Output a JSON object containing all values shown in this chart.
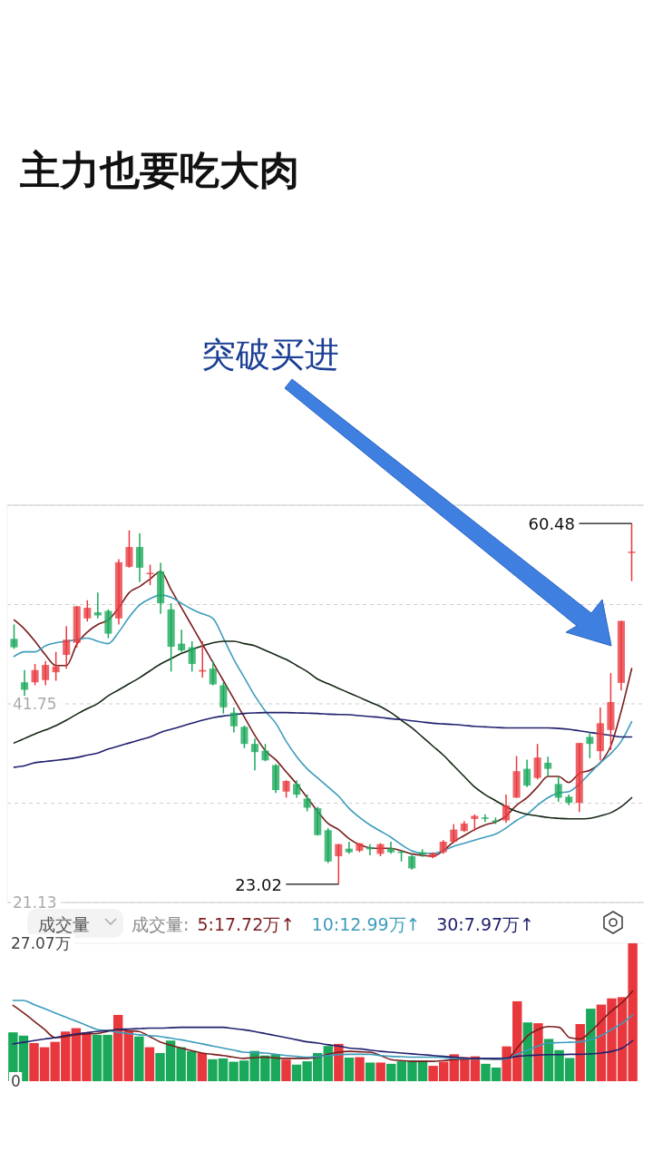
{
  "chart_data": [
    {
      "type": "candlestick",
      "title": "主力也要吃大肉",
      "annotations": [
        "突破买进",
        "60.48",
        "23.02"
      ],
      "categories": [
        null,
        null,
        null,
        null,
        null,
        null,
        null,
        null,
        null,
        null,
        null,
        null,
        null,
        null,
        null,
        null,
        null,
        null,
        null,
        null,
        null,
        null,
        null,
        null,
        null,
        null,
        null,
        null,
        null,
        null,
        null,
        null,
        null,
        null,
        null,
        null,
        null,
        null,
        null,
        null,
        null,
        null,
        null,
        null,
        null,
        null,
        null,
        null,
        null,
        null,
        null,
        null,
        null,
        null,
        null,
        null,
        null,
        null,
        null,
        null
      ],
      "ohlc": [
        [
          48.5,
          49.99,
          47.46,
          47.62
        ],
        [
          43.99,
          45.26,
          42.58,
          43.21
        ],
        [
          43.99,
          45.89,
          43.68,
          45.26
        ],
        [
          44.22,
          46.2,
          43.68,
          45.79
        ],
        [
          45.03,
          47.15,
          44.15,
          45.63
        ],
        [
          46.83,
          49.83,
          45.41,
          48.41
        ],
        [
          48.09,
          51.88,
          47.62,
          51.88
        ],
        [
          50.62,
          52.51,
          50.3,
          51.72
        ],
        [
          51.25,
          53.3,
          50.62,
          50.93
        ],
        [
          51.4,
          51.56,
          48.57,
          49.04
        ],
        [
          50.62,
          56.76,
          49.99,
          56.45
        ],
        [
          55.98,
          59.76,
          55.88,
          58.03
        ],
        [
          58.03,
          59.44,
          54.4,
          55.88
        ],
        [
          55.25,
          56.2,
          54.08,
          55.35
        ],
        [
          55.5,
          56.39,
          51.09,
          52.19
        ],
        [
          51.56,
          52.19,
          45.1,
          47.68
        ],
        [
          48.0,
          49.45,
          47.15,
          47.3
        ],
        [
          47.62,
          48.25,
          45.1,
          45.89
        ],
        [
          45.1,
          48.25,
          44.47,
          45.26
        ],
        [
          45.41,
          46.2,
          43.68,
          43.77
        ],
        [
          43.68,
          43.99,
          40.75,
          41.38
        ],
        [
          40.84,
          41.38,
          38.79,
          39.42
        ],
        [
          39.36,
          39.49,
          37.15,
          37.59
        ],
        [
          37.59,
          38.16,
          34.85,
          36.74
        ],
        [
          36.9,
          37.59,
          35.8,
          35.89
        ],
        [
          35.39,
          35.48,
          32.49,
          32.8
        ],
        [
          32.64,
          33.81,
          32.01,
          33.75
        ],
        [
          33.43,
          33.81,
          32.01,
          32.33
        ],
        [
          31.92,
          32.33,
          30.59,
          30.97
        ],
        [
          30.91,
          31.07,
          28.07,
          28.13
        ],
        [
          28.64,
          28.86,
          25.23,
          25.39
        ],
        [
          25.93,
          27.19,
          23.02,
          27.19
        ],
        [
          26.72,
          27.44,
          26.18,
          26.34
        ],
        [
          26.5,
          27.28,
          26.34,
          27.28
        ],
        [
          26.87,
          27.19,
          26.02,
          26.65
        ],
        [
          26.18,
          27.28,
          25.93,
          27.19
        ],
        [
          26.75,
          27.44,
          26.18,
          26.34
        ],
        [
          26.43,
          26.5,
          25.39,
          26.27
        ],
        [
          25.93,
          26.18,
          24.54,
          24.67
        ],
        [
          26.34,
          26.65,
          25.86,
          26.12
        ],
        [
          25.86,
          26.34,
          25.71,
          26.24
        ],
        [
          26.34,
          27.6,
          26.18,
          27.44
        ],
        [
          27.44,
          29.27,
          27.28,
          28.7
        ],
        [
          28.55,
          29.59,
          28.45,
          29.33
        ],
        [
          29.81,
          30.28,
          28.55,
          30.12
        ],
        [
          29.96,
          30.28,
          29.49,
          29.81
        ],
        [
          29.65,
          29.96,
          29.27,
          29.56
        ],
        [
          29.65,
          32.33,
          29.4,
          31.22
        ],
        [
          32.01,
          36.33,
          32.01,
          34.76
        ],
        [
          35.01,
          35.95,
          33.12,
          33.27
        ],
        [
          34.06,
          37.59,
          33.9,
          36.18
        ],
        [
          35.64,
          36.27,
          34.22,
          35.01
        ],
        [
          33.43,
          34.22,
          31.6,
          32.01
        ],
        [
          32.11,
          32.33,
          31.22,
          31.48
        ],
        [
          31.48,
          37.69,
          30.53,
          37.69
        ],
        [
          38.32,
          38.79,
          36.11,
          37.59
        ],
        [
          36.84,
          41.38,
          35.89,
          39.74
        ],
        [
          39.04,
          44.94,
          36.96,
          41.94
        ],
        [
          43.93,
          50.36,
          43.14,
          50.36
        ],
        [
          57.46,
          60.48,
          54.49,
          57.55
        ]
      ],
      "colors": [
        "#1aa85a",
        "#1aa85a",
        "#e8383d",
        "#e8383d",
        "#e8383d",
        "#e8383d",
        "#e8383d",
        "#e8383d",
        "#1aa85a",
        "#1aa85a",
        "#e8383d",
        "#e8383d",
        "#1aa85a",
        "#e8383d",
        "#1aa85a",
        "#1aa85a",
        "#1aa85a",
        "#1aa85a",
        "#e8383d",
        "#1aa85a",
        "#1aa85a",
        "#1aa85a",
        "#1aa85a",
        "#1aa85a",
        "#1aa85a",
        "#1aa85a",
        "#e8383d",
        "#1aa85a",
        "#1aa85a",
        "#1aa85a",
        "#1aa85a",
        "#e8383d",
        "#1aa85a",
        "#e8383d",
        "#1aa85a",
        "#e8383d",
        "#1aa85a",
        "#1aa85a",
        "#1aa85a",
        "#1aa85a",
        "#e8383d",
        "#e8383d",
        "#e8383d",
        "#e8383d",
        "#e8383d",
        "#1aa85a",
        "#1aa85a",
        "#e8383d",
        "#e8383d",
        "#1aa85a",
        "#e8383d",
        "#1aa85a",
        "#1aa85a",
        "#1aa85a",
        "#e8383d",
        "#1aa85a",
        "#e8383d",
        "#e8383d",
        "#e8383d",
        "#e8383d"
      ],
      "series": [
        {
          "type": "line",
          "color": "#7a1e1e",
          "values": [
            50.46,
            49.51,
            48.25,
            46.83,
            45.73,
            45.73,
            47.94,
            49.2,
            49.99,
            50.46,
            51.72,
            53.3,
            53.93,
            54.71,
            55.5,
            53.61,
            51.72,
            49.83,
            47.94,
            46.04,
            44.15,
            42.26,
            40.37,
            38.48,
            36.9,
            35.95,
            34.69,
            33.43,
            32.01,
            30.59,
            29.33,
            28.7,
            27.76,
            27.13,
            26.81,
            26.75,
            26.75,
            26.5,
            26.18,
            26.02,
            25.93,
            26.5,
            27.44,
            28.07,
            28.7,
            29.18,
            29.49,
            30.12,
            31.22,
            32.01,
            33.12,
            34.22,
            34.22,
            33.59,
            34.54,
            34.85,
            35.64,
            37.37,
            41.0,
            45.41
          ]
        },
        {
          "type": "line",
          "color": "#3c9cbc",
          "values": [
            46.67,
            47.15,
            47.15,
            47.78,
            48.09,
            48.25,
            48.41,
            48.57,
            48.25,
            48.0,
            49.2,
            50.77,
            52.03,
            52.67,
            53.04,
            52.82,
            52.19,
            51.56,
            51.09,
            50.62,
            48.57,
            46.36,
            44.47,
            42.58,
            41.0,
            39.74,
            37.85,
            36.27,
            35.01,
            34.06,
            33.12,
            32.17,
            30.91,
            29.96,
            29.18,
            28.54,
            27.91,
            27.13,
            26.5,
            26.24,
            26.24,
            26.5,
            26.97,
            27.28,
            27.6,
            27.91,
            28.23,
            28.86,
            29.65,
            30.28,
            31.22,
            32.01,
            32.49,
            32.64,
            33.43,
            34.54,
            35.64,
            36.58,
            37.85,
            39.9
          ]
        },
        {
          "type": "line",
          "color": "#142814",
          "values": [
            37.69,
            38.16,
            38.63,
            39.04,
            39.49,
            40.05,
            40.68,
            41.25,
            41.79,
            42.58,
            43.21,
            43.84,
            44.47,
            45.19,
            45.89,
            46.45,
            46.99,
            47.4,
            47.78,
            48.09,
            48.25,
            48.25,
            48.0,
            47.78,
            47.3,
            46.83,
            46.36,
            45.73,
            45.1,
            44.31,
            43.84,
            43.36,
            42.89,
            42.42,
            41.94,
            41.47,
            40.84,
            40.05,
            39.26,
            38.32,
            37.37,
            36.43,
            35.32,
            34.22,
            33.12,
            32.33,
            31.7,
            31.07,
            30.59,
            30.28,
            30.12,
            29.96,
            29.87,
            29.81,
            29.81,
            29.87,
            30.12,
            30.44,
            31.07,
            32.01
          ]
        },
        {
          "type": "line",
          "color": "#22216e",
          "values": [
            35.17,
            35.32,
            35.64,
            35.77,
            35.89,
            36.02,
            36.18,
            36.43,
            36.65,
            37.06,
            37.37,
            37.69,
            38.0,
            38.32,
            38.79,
            39.11,
            39.42,
            39.74,
            40.05,
            40.31,
            40.49,
            40.62,
            40.75,
            40.81,
            40.84,
            40.84,
            40.84,
            40.81,
            40.78,
            40.75,
            40.68,
            40.65,
            40.62,
            40.53,
            40.43,
            40.34,
            40.21,
            40.12,
            39.99,
            39.86,
            39.74,
            39.67,
            39.61,
            39.52,
            39.42,
            39.36,
            39.3,
            39.26,
            39.26,
            39.26,
            39.26,
            39.26,
            39.2,
            39.11,
            38.95,
            38.79,
            38.63,
            38.48,
            38.32,
            38.32
          ]
        }
      ],
      "ylim": [
        21.13,
        62.37
      ],
      "yticks": [
        21.13,
        {
          "value": 31.44,
          "label": null
        },
        41.75,
        {
          "value": 52.06,
          "label": null
        },
        {
          "value": 62.37,
          "label": null
        }
      ],
      "grid": "y",
      "tick_labels": "y"
    },
    {
      "type": "bar",
      "title": "成交量",
      "legend_title": "成交量:",
      "tick_labels": "y",
      "categories": [
        null,
        null,
        null,
        null,
        null,
        null,
        null,
        null,
        null,
        null,
        null,
        null,
        null,
        null,
        null,
        null,
        null,
        null,
        null,
        null,
        null,
        null,
        null,
        null,
        null,
        null,
        null,
        null,
        null,
        null,
        null,
        null,
        null,
        null,
        null,
        null,
        null,
        null,
        null,
        null,
        null,
        null,
        null,
        null,
        null,
        null,
        null,
        null,
        null,
        null,
        null,
        null,
        null,
        null,
        null,
        null,
        null,
        null,
        null,
        null
      ],
      "series": [
        {
          "type": "bar",
          "values": [
            9.59,
            8.94,
            7.48,
            6.67,
            7.72,
            9.75,
            10.41,
            9.59,
            9.1,
            9.1,
            13.01,
            9.92,
            8.78,
            6.67,
            5.53,
            7.97,
            6.67,
            5.93,
            5.53,
            4.31,
            4.47,
            3.82,
            4.06,
            5.93,
            5.04,
            5.28,
            4.23,
            3.25,
            3.9,
            5.53,
            6.91,
            7.32,
            4.63,
            4.72,
            3.66,
            3.66,
            3.41,
            3.9,
            4.06,
            4.06,
            3.01,
            3.82,
            5.28,
            4.72,
            4.88,
            3.41,
            2.68,
            6.83,
            15.69,
            11.54,
            11.38,
            8.29,
            6.1,
            4.55,
            11.22,
            14.23,
            15.04,
            16.26,
            16.5,
            27.07
          ],
          "colors": [
            "#1aa85a",
            "#1aa85a",
            "#e8383d",
            "#e8383d",
            "#e8383d",
            "#e8383d",
            "#e8383d",
            "#e8383d",
            "#1aa85a",
            "#1aa85a",
            "#e8383d",
            "#e8383d",
            "#1aa85a",
            "#e8383d",
            "#1aa85a",
            "#1aa85a",
            "#1aa85a",
            "#1aa85a",
            "#e8383d",
            "#1aa85a",
            "#1aa85a",
            "#1aa85a",
            "#1aa85a",
            "#1aa85a",
            "#1aa85a",
            "#1aa85a",
            "#e8383d",
            "#1aa85a",
            "#1aa85a",
            "#1aa85a",
            "#1aa85a",
            "#e8383d",
            "#1aa85a",
            "#e8383d",
            "#1aa85a",
            "#e8383d",
            "#1aa85a",
            "#1aa85a",
            "#1aa85a",
            "#1aa85a",
            "#e8383d",
            "#e8383d",
            "#e8383d",
            "#e8383d",
            "#e8383d",
            "#1aa85a",
            "#1aa85a",
            "#e8383d",
            "#e8383d",
            "#1aa85a",
            "#e8383d",
            "#1aa85a",
            "#1aa85a",
            "#1aa85a",
            "#e8383d",
            "#1aa85a",
            "#e8383d",
            "#e8383d",
            "#e8383d",
            "#e8383d"
          ]
        },
        {
          "type": "line",
          "name": "5:17.72万↑",
          "color": "#7a1e1e",
          "values": [
            14.88,
            13.41,
            11.79,
            10.16,
            8.54,
            8.78,
            9.1,
            9.27,
            9.35,
            9.75,
            10.16,
            9.92,
            9.75,
            8.78,
            7.72,
            7.07,
            6.5,
            6.02,
            5.53,
            5.28,
            5.04,
            4.71,
            4.47,
            4.63,
            4.71,
            4.55,
            4.47,
            4.47,
            4.47,
            4.71,
            5.28,
            5.69,
            5.85,
            5.77,
            5.69,
            5.04,
            4.23,
            4.06,
            3.9,
            3.9,
            3.9,
            4.06,
            4.23,
            4.31,
            4.47,
            4.39,
            4.31,
            4.39,
            6.5,
            8.94,
            10.16,
            10.73,
            10.57,
            8.54,
            8.29,
            9.75,
            11.79,
            13.82,
            15.45,
            17.72
          ]
        },
        {
          "type": "line",
          "name": "10:12.99万↑",
          "color": "#3c9cbc",
          "values": [
            15.85,
            15.85,
            15.04,
            14.23,
            13.41,
            12.6,
            11.79,
            10.97,
            10.16,
            9.92,
            9.59,
            9.35,
            9.1,
            8.94,
            8.78,
            8.45,
            8.13,
            7.72,
            7.32,
            6.91,
            6.5,
            6.1,
            5.69,
            5.61,
            5.53,
            5.28,
            5.04,
            4.88,
            4.71,
            4.88,
            5.04,
            5.2,
            5.28,
            5.28,
            5.28,
            5.04,
            4.88,
            4.8,
            4.71,
            4.71,
            4.71,
            4.63,
            4.47,
            4.47,
            4.39,
            4.39,
            4.31,
            4.39,
            5.28,
            6.1,
            6.91,
            7.48,
            7.56,
            7.64,
            7.72,
            8.13,
            8.94,
            10.16,
            11.38,
            12.99
          ]
        },
        {
          "type": "line",
          "name": "30:7.97万↑",
          "color": "#22216e",
          "values": [
            7.32,
            7.64,
            7.97,
            8.29,
            8.54,
            8.94,
            9.27,
            9.51,
            9.75,
            9.92,
            10.16,
            10.24,
            10.32,
            10.41,
            10.41,
            10.49,
            10.57,
            10.57,
            10.57,
            10.57,
            10.57,
            10.32,
            10.08,
            9.75,
            9.35,
            8.94,
            8.54,
            8.13,
            7.72,
            7.48,
            7.15,
            6.91,
            6.5,
            6.34,
            6.1,
            5.85,
            5.69,
            5.53,
            5.37,
            5.2,
            5.04,
            4.88,
            4.71,
            4.55,
            4.47,
            4.47,
            4.47,
            4.55,
            4.88,
            5.04,
            5.12,
            5.2,
            5.2,
            5.28,
            5.28,
            5.37,
            5.53,
            5.85,
            6.5,
            7.97
          ]
        }
      ],
      "ylim": [
        0,
        27.07
      ],
      "yticks": [
        0,
        {
          "value": 27.07,
          "label": "27.07万"
        }
      ]
    }
  ]
}
